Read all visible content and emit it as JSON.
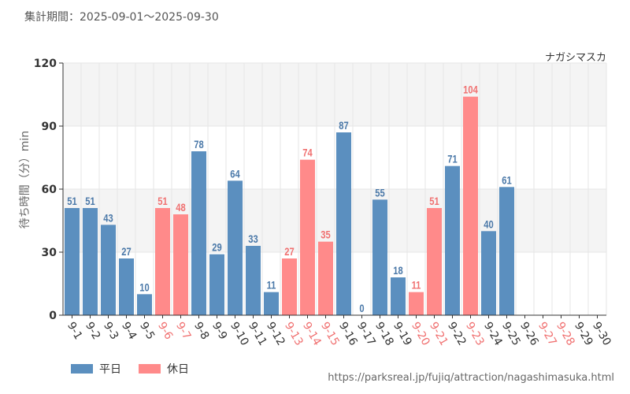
{
  "header": {
    "period_label": "集計期間：2025-09-01～2025-09-30"
  },
  "legend": [
    {
      "label": "平日",
      "color": "#5b8fbf"
    },
    {
      "label": "休日",
      "color": "#ff8a8a"
    }
  ],
  "footer": {
    "source_url": "https://parksreal.jp/fujiq/attraction/nagashimasuka.html"
  },
  "colors": {
    "weekday": "#5b8fbf",
    "holiday": "#ff8a8a",
    "weekday_label": "#4a78a8",
    "holiday_label": "#f07070"
  },
  "chart_data": {
    "type": "bar",
    "title": "ナガシマスカ",
    "xlabel": "",
    "ylabel": "待ち時間（分）min",
    "ylim": [
      0,
      120
    ],
    "yticks": [
      0,
      30,
      60,
      90,
      120
    ],
    "categories": [
      "9-1",
      "9-2",
      "9-3",
      "9-4",
      "9-5",
      "9-6",
      "9-7",
      "9-8",
      "9-9",
      "9-10",
      "9-11",
      "9-12",
      "9-13",
      "9-14",
      "9-15",
      "9-16",
      "9-17",
      "9-18",
      "9-19",
      "9-20",
      "9-21",
      "9-22",
      "9-23",
      "9-24",
      "9-25",
      "9-26",
      "9-27",
      "9-28",
      "9-29",
      "9-30"
    ],
    "values": [
      51,
      51,
      43,
      27,
      10,
      51,
      48,
      78,
      29,
      64,
      33,
      11,
      27,
      74,
      35,
      87,
      0,
      55,
      18,
      11,
      51,
      71,
      104,
      40,
      61,
      null,
      null,
      null,
      null,
      null
    ],
    "holiday": [
      false,
      false,
      false,
      false,
      false,
      true,
      true,
      false,
      false,
      false,
      false,
      false,
      true,
      true,
      true,
      false,
      false,
      false,
      false,
      true,
      true,
      false,
      true,
      false,
      false,
      false,
      true,
      true,
      false,
      false
    ],
    "series": [
      {
        "name": "平日"
      },
      {
        "name": "休日"
      }
    ]
  }
}
